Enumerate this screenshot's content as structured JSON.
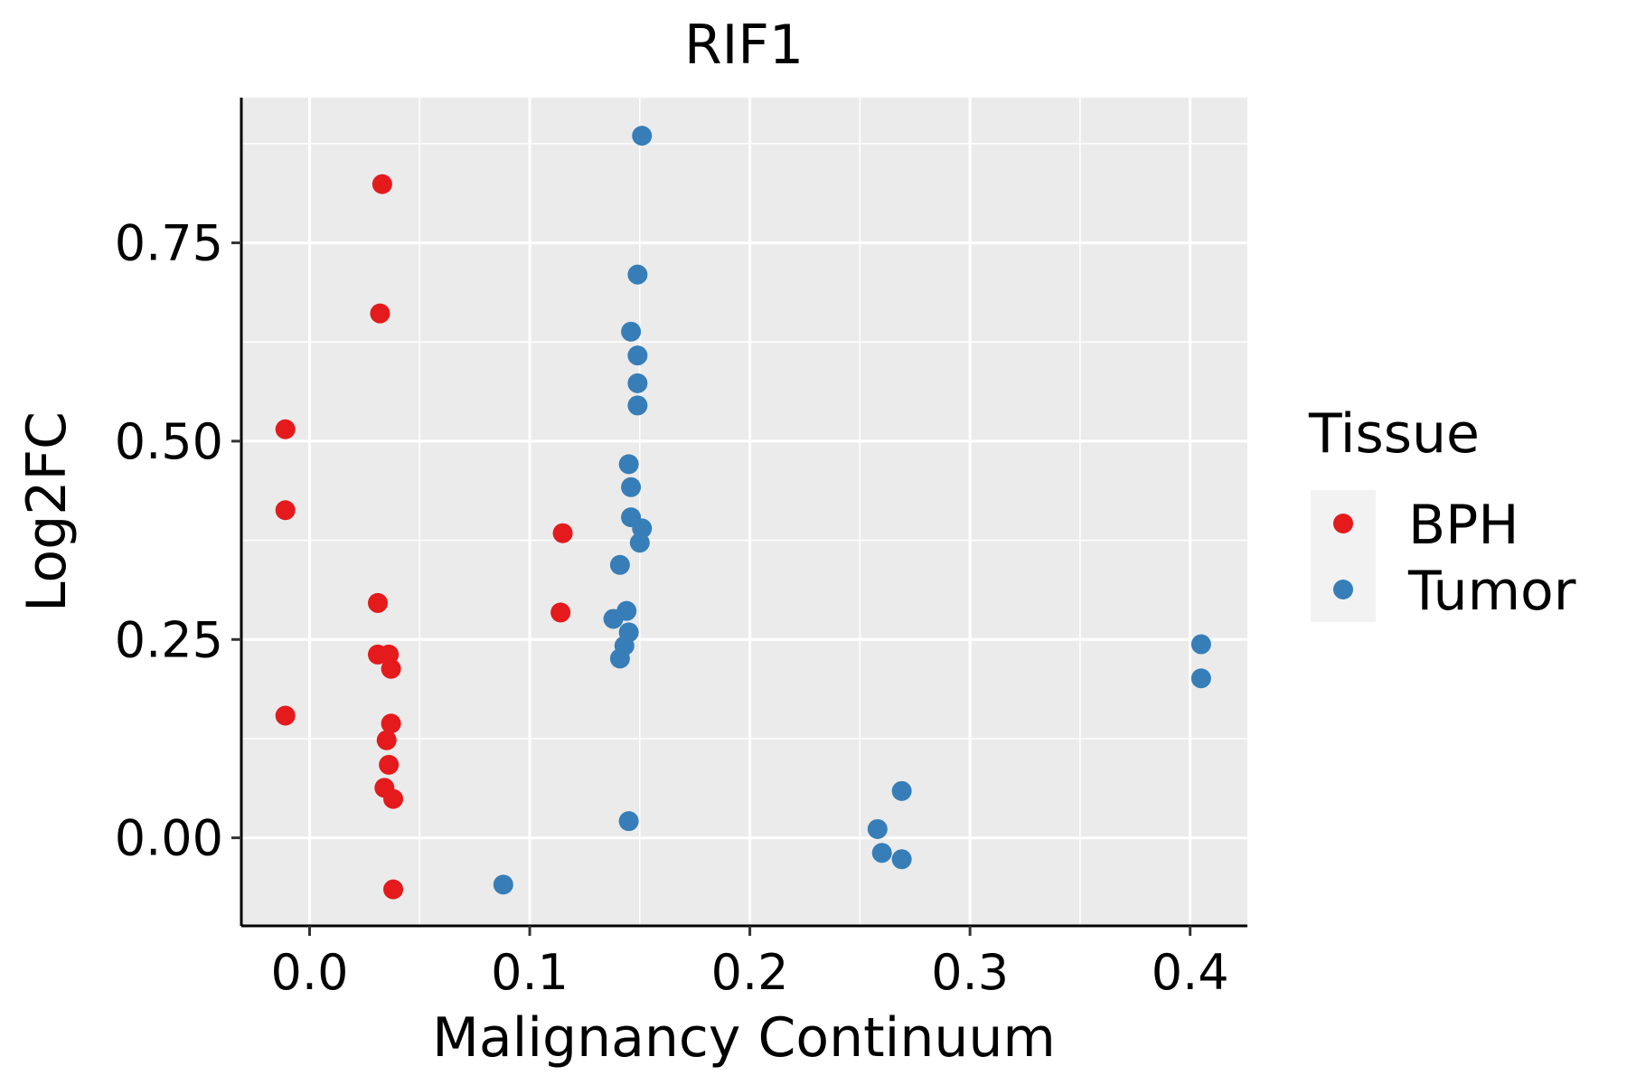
{
  "chart_data": {
    "type": "scatter",
    "title": "RIF1",
    "xlabel": "Malignancy Continuum",
    "ylabel": "Log2FC",
    "xlim": [
      -0.031,
      0.426
    ],
    "ylim": [
      -0.111,
      0.933
    ],
    "xticks": [
      0.0,
      0.1,
      0.2,
      0.3,
      0.4
    ],
    "xtick_labels": [
      "0.0",
      "0.1",
      "0.2",
      "0.3",
      "0.4"
    ],
    "yticks": [
      0.0,
      0.25,
      0.5,
      0.75
    ],
    "ytick_labels": [
      "0.00",
      "0.25",
      "0.50",
      "0.75"
    ],
    "grid": true,
    "legend": {
      "title": "Tissue",
      "position": "right"
    },
    "series": [
      {
        "name": "BPH",
        "color": "#E41A1C",
        "points": [
          [
            0.033,
            0.824
          ],
          [
            0.032,
            0.661
          ],
          [
            -0.011,
            0.515
          ],
          [
            -0.011,
            0.413
          ],
          [
            0.115,
            0.384
          ],
          [
            0.114,
            0.284
          ],
          [
            0.031,
            0.296
          ],
          [
            0.031,
            0.231
          ],
          [
            0.036,
            0.231
          ],
          [
            0.037,
            0.213
          ],
          [
            0.037,
            0.144
          ],
          [
            0.035,
            0.123
          ],
          [
            0.036,
            0.092
          ],
          [
            0.034,
            0.063
          ],
          [
            0.038,
            0.049
          ],
          [
            -0.011,
            0.154
          ],
          [
            0.038,
            -0.065
          ]
        ]
      },
      {
        "name": "Tumor",
        "color": "#377EB8",
        "points": [
          [
            0.151,
            0.885
          ],
          [
            0.149,
            0.71
          ],
          [
            0.146,
            0.638
          ],
          [
            0.149,
            0.608
          ],
          [
            0.149,
            0.573
          ],
          [
            0.149,
            0.545
          ],
          [
            0.145,
            0.471
          ],
          [
            0.146,
            0.442
          ],
          [
            0.146,
            0.404
          ],
          [
            0.151,
            0.39
          ],
          [
            0.15,
            0.372
          ],
          [
            0.141,
            0.344
          ],
          [
            0.144,
            0.286
          ],
          [
            0.138,
            0.276
          ],
          [
            0.145,
            0.259
          ],
          [
            0.143,
            0.242
          ],
          [
            0.141,
            0.226
          ],
          [
            0.145,
            0.021
          ],
          [
            0.088,
            -0.059
          ],
          [
            0.258,
            0.011
          ],
          [
            0.26,
            -0.019
          ],
          [
            0.269,
            0.059
          ],
          [
            0.269,
            -0.027
          ],
          [
            0.405,
            0.244
          ],
          [
            0.405,
            0.201
          ]
        ]
      }
    ]
  }
}
